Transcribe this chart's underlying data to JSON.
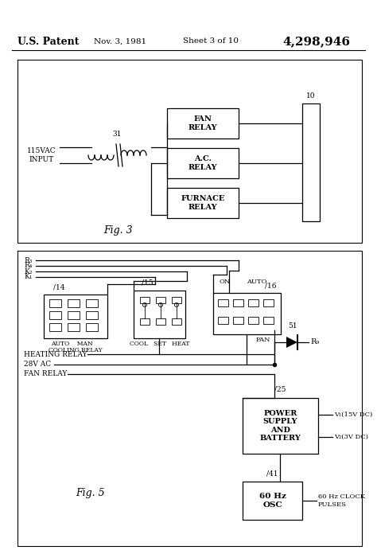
{
  "background_color": "#ffffff",
  "patent_text": "U.S. Patent",
  "patent_date": "Nov. 3, 1981",
  "patent_sheet": "Sheet 3 of 10",
  "patent_number": "4,298,946",
  "fig3_label": "Fig. 3",
  "fig5_label": "Fig. 5",
  "fig3_input_label": "115VAC\nINPUT",
  "fig3_transformer_label": "31",
  "fig3_bus_label": "10",
  "fig3_relay1": "FAN\nRELAY",
  "fig3_relay2": "A.C.\nRELAY",
  "fig3_relay3": "FURNACE\nRELAY",
  "fig5_r3": "R₃",
  "fig5_r4": "R₄",
  "fig5_k2": "K₂",
  "fig5_k1": "K₁",
  "fig5_label14": "14",
  "fig5_label15": "15",
  "fig5_label16": "16",
  "fig5_label25": "25",
  "fig5_label41": "41",
  "fig5_label51": "51",
  "fig5_auto_man": "AUTO    MAN",
  "fig5_cooling_relay": "COOLING RELAY",
  "fig5_cool_set_heat": "COOL   SET   HEAT",
  "fig5_on": "ON",
  "fig5_auto": "AUTO",
  "fig5_fan": "FAN",
  "fig5_heating_relay": "HEATING RELAY",
  "fig5_28vac": "28V AC",
  "fig5_fan_relay": "FAN RELAY",
  "fig5_r9": "R₉",
  "fig5_power_supply": "POWER\nSUPPLY\nAND\nBATTERY",
  "fig5_v1": "V₁(15V DC)",
  "fig5_v2": "V₂(3V DC)",
  "fig5_osc_box": "60 Hz\nOSC",
  "fig5_clock": "60 Hz CLOCK\nPULSES"
}
